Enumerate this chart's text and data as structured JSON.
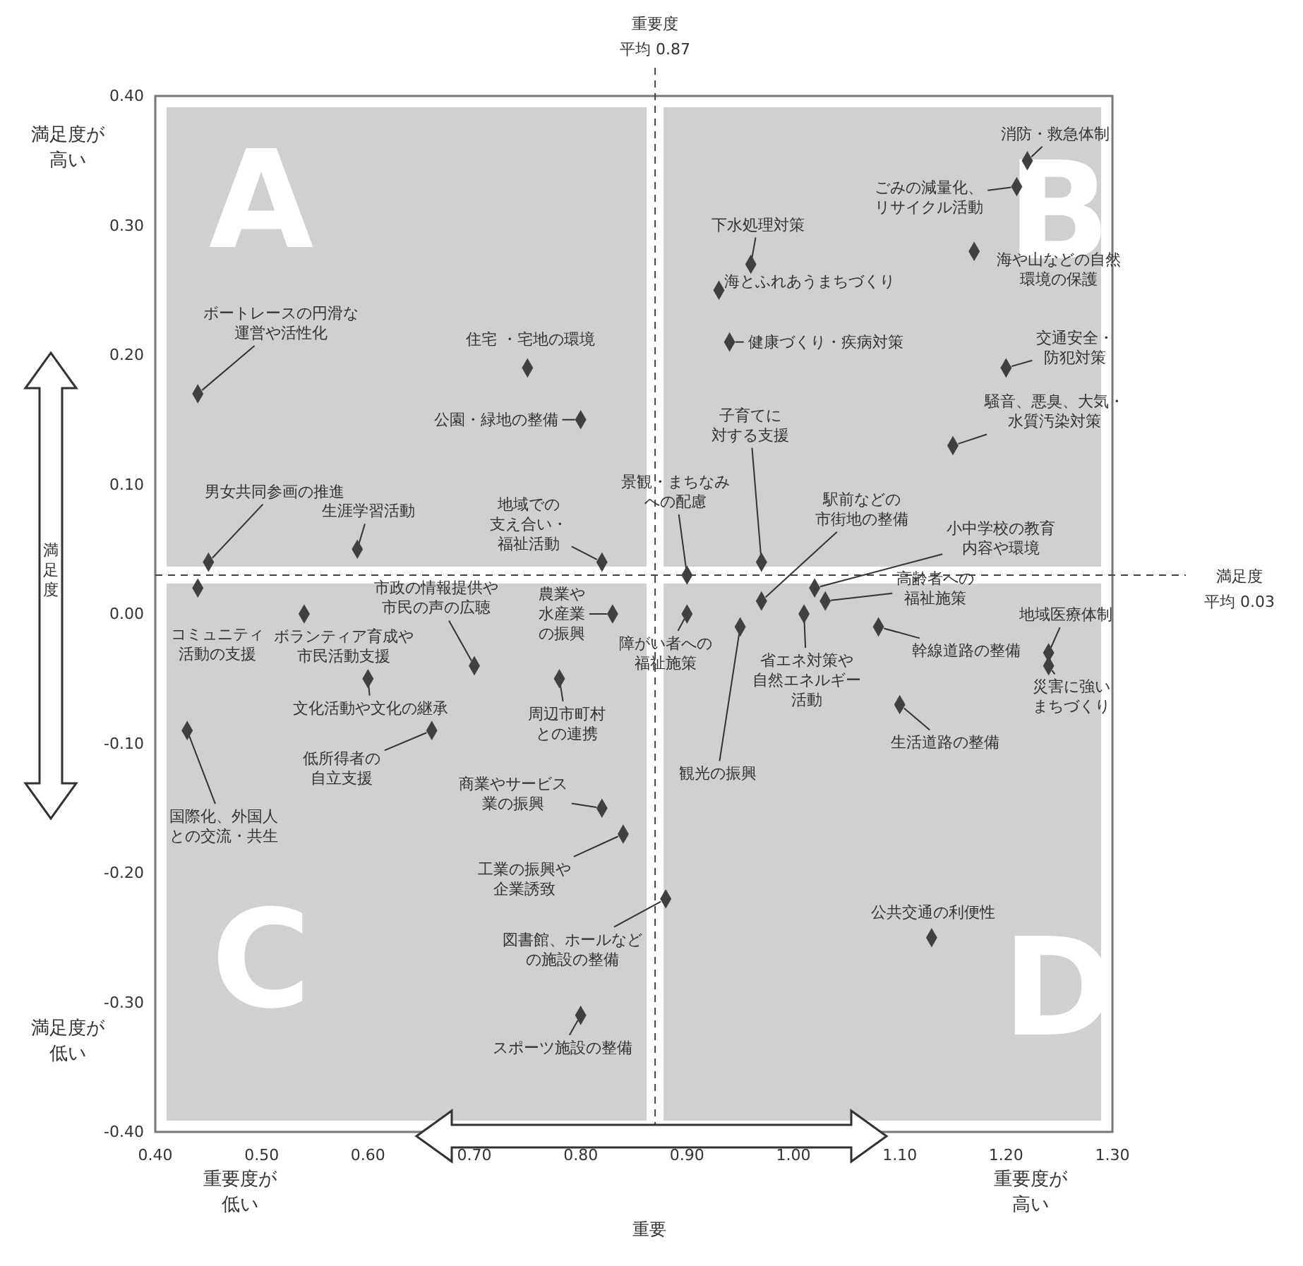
{
  "chart_data": {
    "type": "scatter",
    "marker": "diamond",
    "grid": false,
    "xlabel": "重要",
    "ylabel": "満足度",
    "xlim": [
      0.4,
      1.3
    ],
    "ylim": [
      -0.4,
      0.4
    ],
    "xticks": [
      {
        "value": 0.4,
        "label": "0.40"
      },
      {
        "value": 0.5,
        "label": "0.50"
      },
      {
        "value": 0.6,
        "label": "0.60"
      },
      {
        "value": 0.7,
        "label": "0.70"
      },
      {
        "value": 0.8,
        "label": "0.80"
      },
      {
        "value": 0.9,
        "label": "0.90"
      },
      {
        "value": 1.0,
        "label": "1.00"
      },
      {
        "value": 1.1,
        "label": "1.10"
      },
      {
        "value": 1.2,
        "label": "1.20"
      },
      {
        "value": 1.3,
        "label": "1.30"
      }
    ],
    "yticks": [
      {
        "value": 0.4,
        "label": "0.40"
      },
      {
        "value": 0.3,
        "label": "0.30"
      },
      {
        "value": 0.2,
        "label": "0.20"
      },
      {
        "value": 0.1,
        "label": "0.10"
      },
      {
        "value": 0,
        "label": "0.00"
      },
      {
        "value": -0.1,
        "label": "-0.10"
      },
      {
        "value": -0.2,
        "label": "-0.20"
      },
      {
        "value": -0.3,
        "label": "-0.30"
      },
      {
        "value": -0.4,
        "label": "-0.40"
      }
    ],
    "x": [
      1.22,
      1.21,
      1.17,
      0.96,
      0.93,
      0.94,
      1.2,
      1.15,
      0.97,
      0.9,
      0.97,
      1.02,
      1.03,
      0.9,
      0.95,
      1.01,
      1.08,
      1.24,
      1.24,
      1.1,
      1.13,
      0.88,
      0.44,
      0.45,
      0.54,
      0.7,
      0.83,
      0.6,
      0.78,
      0.43,
      0.66,
      0.82,
      0.84,
      0.8,
      0.44,
      0.75,
      0.8,
      0.59,
      0.82
    ],
    "series": [
      {
        "color": "#404040",
        "values": [
          0.35,
          0.33,
          0.28,
          0.27,
          0.25,
          0.21,
          0.19,
          0.13,
          0.04,
          0.03,
          0.01,
          0.02,
          0.01,
          0,
          -0.01,
          0,
          -0.01,
          -0.03,
          -0.04,
          -0.07,
          -0.25,
          -0.22,
          0.02,
          0.04,
          0,
          -0.04,
          0,
          -0.05,
          -0.05,
          -0.09,
          -0.09,
          -0.15,
          -0.17,
          -0.31,
          0.17,
          0.19,
          0.15,
          0.05,
          0.04
        ]
      }
    ],
    "ref_lines": [
      {
        "axis": "x",
        "value": 0.87,
        "label": "重要度平均 0.87",
        "line_style": "dashed"
      },
      {
        "axis": "y",
        "value": 0.03,
        "label": "満足度平均 0.03",
        "line_style": "dashed"
      }
    ],
    "annotations": [
      {
        "text": "消防・救急体制",
        "x": 1.22,
        "y": 0.35
      },
      {
        "text": "ごみの減量化、リサイクル活動",
        "x": 1.21,
        "y": 0.33
      },
      {
        "text": "海や山などの自然環境の保護",
        "x": 1.17,
        "y": 0.28
      },
      {
        "text": "下水処理対策",
        "x": 0.96,
        "y": 0.27
      },
      {
        "text": "海とふれあうまちづくり",
        "x": 0.93,
        "y": 0.25
      },
      {
        "text": "健康づくり・疾病対策",
        "x": 0.94,
        "y": 0.21
      },
      {
        "text": "交通安全・防犯対策",
        "x": 1.2,
        "y": 0.19
      },
      {
        "text": "騒音、悪臭、大気・水質汚染対策",
        "x": 1.15,
        "y": 0.13
      },
      {
        "text": "子育てに対する支援",
        "x": 0.97,
        "y": 0.04
      },
      {
        "text": "景観・まちなみへの配慮",
        "x": 0.9,
        "y": 0.03
      },
      {
        "text": "駅前などの市街地の整備",
        "x": 0.97,
        "y": 0.01
      },
      {
        "text": "小中学校の教育内容や環境",
        "x": 1.02,
        "y": 0.02
      },
      {
        "text": "高齢者への福祉施策",
        "x": 1.03,
        "y": 0.01
      },
      {
        "text": "障がい者への福祉施策",
        "x": 0.9,
        "y": 0
      },
      {
        "text": "観光の振興",
        "x": 0.95,
        "y": -0.01
      },
      {
        "text": "省エネ対策や自然エネルギー活動",
        "x": 1.01,
        "y": 0
      },
      {
        "text": "幹線道路の整備",
        "x": 1.08,
        "y": -0.01
      },
      {
        "text": "地域医療体制",
        "x": 1.24,
        "y": -0.03
      },
      {
        "text": "災害に強いまちづくり",
        "x": 1.24,
        "y": -0.04
      },
      {
        "text": "生活道路の整備",
        "x": 1.1,
        "y": -0.07
      },
      {
        "text": "公共交通の利便性",
        "x": 1.13,
        "y": -0.25
      },
      {
        "text": "図書館、ホールなどの施設の整備",
        "x": 0.88,
        "y": -0.22
      },
      {
        "text": "コミュニティ活動の支援",
        "x": 0.44,
        "y": 0.02
      },
      {
        "text": "男女共同参画の推進",
        "x": 0.45,
        "y": 0.04
      },
      {
        "text": "ボランティア育成や市民活動支援",
        "x": 0.54,
        "y": 0
      },
      {
        "text": "市政の情報提供や市民の声の広聴",
        "x": 0.7,
        "y": -0.04
      },
      {
        "text": "農業や水産業の振興",
        "x": 0.83,
        "y": 0
      },
      {
        "text": "文化活動や文化の継承",
        "x": 0.6,
        "y": -0.05
      },
      {
        "text": "周辺市町村との連携",
        "x": 0.78,
        "y": -0.05
      },
      {
        "text": "国際化、外国人との交流・共生",
        "x": 0.43,
        "y": -0.09
      },
      {
        "text": "低所得者の自立支援",
        "x": 0.66,
        "y": -0.09
      },
      {
        "text": "商業やサービス業の振興",
        "x": 0.82,
        "y": -0.15
      },
      {
        "text": "工業の振興や企業誘致",
        "x": 0.84,
        "y": -0.17
      },
      {
        "text": "スポーツ施設の整備",
        "x": 0.8,
        "y": -0.31
      },
      {
        "text": "ボートレースの円滑な運営や活性化",
        "x": 0.44,
        "y": 0.17
      },
      {
        "text": "住宅 ・宅地の環境",
        "x": 0.75,
        "y": 0.19
      },
      {
        "text": "公園・緑地の整備",
        "x": 0.8,
        "y": 0.15
      },
      {
        "text": "生涯学習活動",
        "x": 0.59,
        "y": 0.05
      },
      {
        "text": "地域での支え合い・福祉活動",
        "x": 0.82,
        "y": 0.04
      },
      "A",
      "B",
      "C",
      "D",
      "満足度が高い",
      "満足度が低い",
      "重要度が低い",
      "重要度が高い"
    ]
  }
}
